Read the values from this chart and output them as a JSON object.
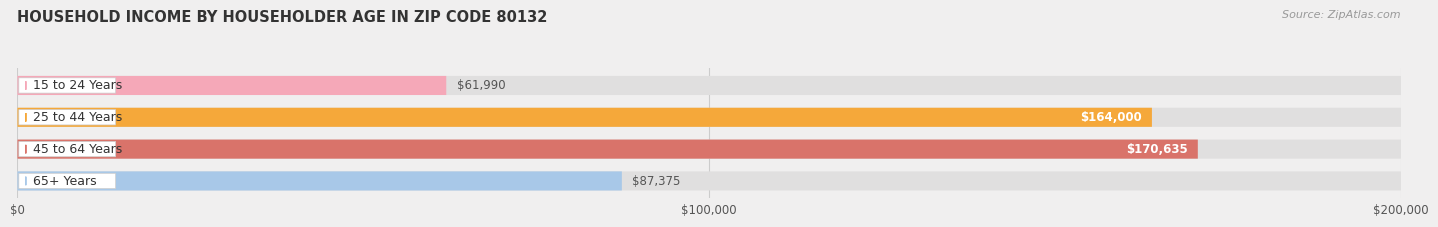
{
  "title": "HOUSEHOLD INCOME BY HOUSEHOLDER AGE IN ZIP CODE 80132",
  "source": "Source: ZipAtlas.com",
  "categories": [
    "15 to 24 Years",
    "25 to 44 Years",
    "45 to 64 Years",
    "65+ Years"
  ],
  "values": [
    61990,
    164000,
    170635,
    87375
  ],
  "bar_colors": [
    "#f5a8b8",
    "#f5a83a",
    "#d9736a",
    "#a8c8e8"
  ],
  "label_dot_colors": [
    "#f5a8b8",
    "#f5a83a",
    "#d9736a",
    "#a8c8e8"
  ],
  "bg_color": "#f0efef",
  "bar_bg_color": "#e0dfdf",
  "xlim": [
    0,
    200000
  ],
  "xticks": [
    0,
    100000,
    200000
  ],
  "xtick_labels": [
    "$0",
    "$100,000",
    "$200,000"
  ],
  "value_labels": [
    "$61,990",
    "$164,000",
    "$170,635",
    "$87,375"
  ],
  "value_inside": [
    false,
    true,
    true,
    false
  ],
  "title_fontsize": 10.5,
  "source_fontsize": 8,
  "cat_fontsize": 9,
  "value_fontsize": 8.5
}
